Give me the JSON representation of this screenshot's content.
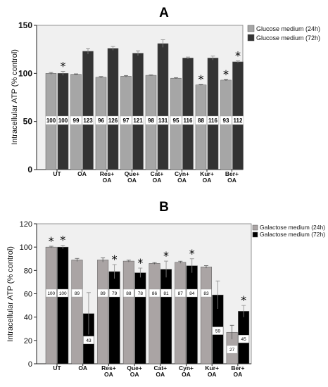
{
  "chart_data": [
    {
      "type": "bar",
      "panel_label": "A",
      "title": "",
      "xlabel": "",
      "ylabel": "Intracellular ATP (% control)",
      "ylim": [
        0,
        150
      ],
      "yticks": [
        "0",
        "50",
        "100",
        "150"
      ],
      "categories": [
        "UT",
        "OA",
        "Res+\nOA",
        "Que+\nOA",
        "Cat+\nOA",
        "Cyn+\nOA",
        "Kur+\nOA",
        "Ber+\nOA"
      ],
      "grid": false,
      "legend_position": "top-right-outside",
      "series": [
        {
          "name": "Glucose medium (24h)",
          "color": "#a6a6a6",
          "values": [
            100,
            99,
            96,
            97,
            98,
            95,
            88,
            93
          ],
          "errors": [
            1,
            0.5,
            0.7,
            0.8,
            0.5,
            0.6,
            0.5,
            0.8
          ],
          "value_labels": [
            "100",
            "99",
            "96",
            "97",
            "98",
            "95",
            "88",
            "93"
          ],
          "significant": [
            false,
            false,
            false,
            false,
            false,
            false,
            true,
            true
          ]
        },
        {
          "name": "Glucose medium (72h)",
          "color": "#333333",
          "values": [
            100,
            123,
            126,
            121,
            131,
            116,
            116,
            112
          ],
          "errors": [
            2,
            3,
            2,
            2.5,
            4,
            1,
            2,
            1
          ],
          "value_labels": [
            "100",
            "123",
            "126",
            "121",
            "131",
            "116",
            "116",
            "112"
          ],
          "significant": [
            true,
            false,
            false,
            false,
            false,
            false,
            false,
            true
          ]
        }
      ]
    },
    {
      "type": "bar",
      "panel_label": "B",
      "title": "",
      "xlabel": "",
      "ylabel": "Intracellular ATP (% control)",
      "ylim": [
        0,
        120
      ],
      "yticks": [
        "0",
        "20",
        "40",
        "60",
        "80",
        "100",
        "120"
      ],
      "categories": [
        "UT",
        "OA",
        "Res+\nOA",
        "Que+\nOA",
        "Cat+\nOA",
        "Cyn+\nOA",
        "Kur+\nOA",
        "Ber+\nOA"
      ],
      "grid": false,
      "legend_position": "top-right-outside",
      "series": [
        {
          "name": "Galactose medium (24h)",
          "color": "#aaa4a4",
          "values": [
            100,
            89,
            89,
            88,
            86,
            87,
            83,
            27
          ],
          "errors": [
            0.7,
            1.3,
            1.8,
            0.8,
            0.7,
            0.9,
            1.1,
            6
          ],
          "value_labels": [
            "100",
            "89",
            "89",
            "88",
            "86",
            "87",
            "83",
            "27"
          ],
          "significant": [
            true,
            false,
            false,
            false,
            false,
            false,
            false,
            false
          ]
        },
        {
          "name": "Galactose medium (72h)",
          "color": "#000000",
          "values": [
            100,
            43,
            79,
            78,
            81,
            84,
            59,
            45
          ],
          "errors": [
            1.5,
            18,
            6,
            4,
            7,
            6,
            12,
            5
          ],
          "value_labels": [
            "100",
            "43",
            "79",
            "78",
            "81",
            "84",
            "59",
            "45"
          ],
          "significant": [
            true,
            false,
            true,
            true,
            true,
            true,
            false,
            true
          ]
        }
      ]
    }
  ]
}
